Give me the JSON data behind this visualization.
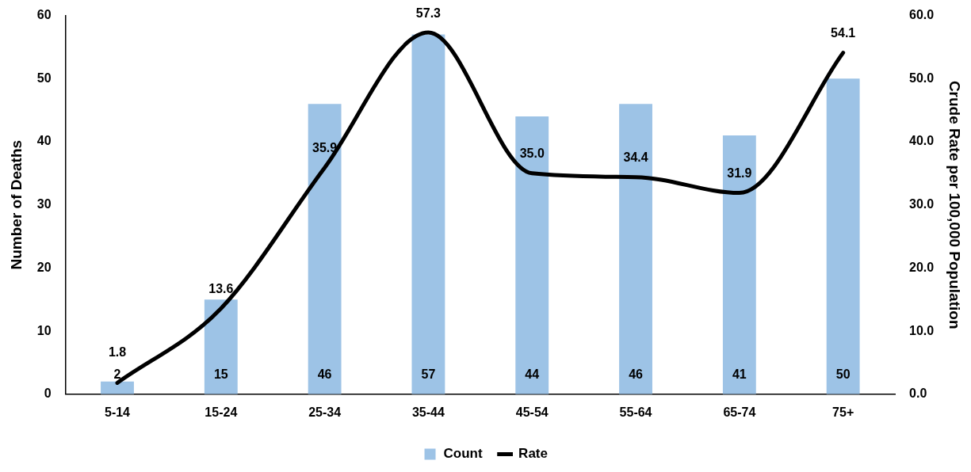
{
  "chart_data": {
    "type": "bar",
    "categories": [
      "5-14",
      "15-24",
      "25-34",
      "35-44",
      "45-54",
      "55-64",
      "65-74",
      "75+"
    ],
    "ylabel": "Number of Deaths",
    "y2label": "Crude Rate per 100,000 Population",
    "ylim": [
      0,
      60
    ],
    "yticks": [
      0,
      10,
      20,
      30,
      40,
      50,
      60
    ],
    "y2lim": [
      0,
      60
    ],
    "y2ticks": [
      {
        "value": 0,
        "label": "0.0"
      },
      {
        "value": 10,
        "label": "10.0"
      },
      {
        "value": 20,
        "label": "20.0"
      },
      {
        "value": 30,
        "label": "30.0"
      },
      {
        "value": 40,
        "label": "40.0"
      },
      {
        "value": 50,
        "label": "50.0"
      },
      {
        "value": 60,
        "label": "60.0"
      }
    ],
    "series": [
      {
        "name": "Count",
        "color": "#9dc3e6",
        "values": [
          2,
          15,
          46,
          57,
          44,
          46,
          41,
          50
        ],
        "value_labels": [
          "2",
          "15",
          "46",
          "57",
          "44",
          "46",
          "41",
          "50"
        ]
      },
      {
        "name": "Rate",
        "type": "line",
        "axis": "y2",
        "color": "#000000",
        "values": [
          1.8,
          13.6,
          35.9,
          57.3,
          35.0,
          34.4,
          31.9,
          54.1
        ],
        "value_labels": [
          "1.8",
          "13.6",
          "35.9",
          "57.3",
          "35.0",
          "34.4",
          "31.9",
          "54.1"
        ]
      }
    ],
    "grid": false,
    "legend": "bottom",
    "marker": "none",
    "line_style": "solid"
  }
}
